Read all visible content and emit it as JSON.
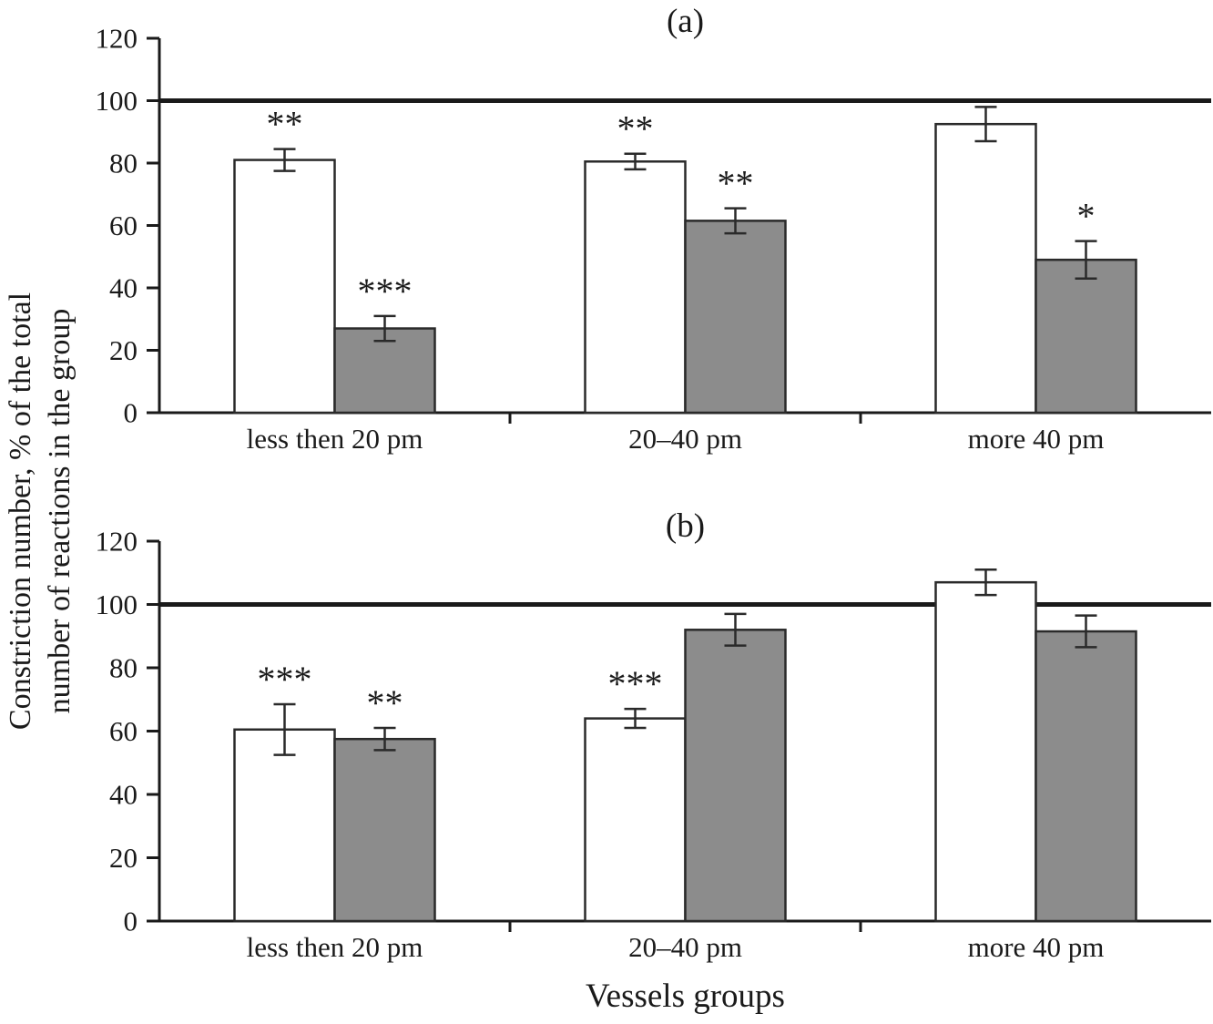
{
  "figure": {
    "ylabel_line1": "Constriction number, % of the total",
    "ylabel_line2": "number of reactions in the group",
    "xlabel": "Vessels groups"
  },
  "colors": {
    "axis": "#1a1a1a",
    "reference_line": "#1a1a1a",
    "bar_stroke": "#2a2a2a",
    "white_bar_fill": "#ffffff",
    "gray_bar_fill": "#8c8c8c"
  },
  "chart_data": [
    {
      "type": "bar",
      "panel_label": "(a)",
      "categories": [
        "less then 20 pm",
        "20–40 pm",
        "more 40 pm"
      ],
      "xlabel": "Vessels groups",
      "ylabel": "Constriction number, % of the total number of reactions in the group",
      "ylim": [
        0,
        120
      ],
      "yticks": [
        0,
        20,
        40,
        60,
        80,
        100,
        120
      ],
      "reference_line_y": 100,
      "grid": "off",
      "legend": "none",
      "series": [
        {
          "name": "white-bars",
          "fill": "#ffffff",
          "values": [
            81,
            80.5,
            92.5
          ],
          "errors": [
            3.5,
            2.5,
            5.5
          ],
          "annotations": [
            "**",
            "**",
            ""
          ]
        },
        {
          "name": "gray-bars",
          "fill": "#8c8c8c",
          "values": [
            27,
            61.5,
            49
          ],
          "errors": [
            4,
            4,
            6
          ],
          "annotations": [
            "***",
            "**",
            "*"
          ]
        }
      ]
    },
    {
      "type": "bar",
      "panel_label": "(b)",
      "categories": [
        "less then 20 pm",
        "20–40 pm",
        "more 40 pm"
      ],
      "xlabel": "Vessels groups",
      "ylabel": "Constriction number, % of the total number of reactions in the group",
      "ylim": [
        0,
        120
      ],
      "yticks": [
        0,
        20,
        40,
        60,
        80,
        100,
        120
      ],
      "reference_line_y": 100,
      "grid": "off",
      "legend": "none",
      "series": [
        {
          "name": "white-bars",
          "fill": "#ffffff",
          "values": [
            60.5,
            64,
            107
          ],
          "errors": [
            8,
            3,
            4
          ],
          "annotations": [
            "***",
            "***",
            ""
          ]
        },
        {
          "name": "gray-bars",
          "fill": "#8c8c8c",
          "values": [
            57.5,
            92,
            91.5
          ],
          "errors": [
            3.5,
            5,
            5
          ],
          "annotations": [
            "**",
            "",
            ""
          ]
        }
      ]
    }
  ]
}
